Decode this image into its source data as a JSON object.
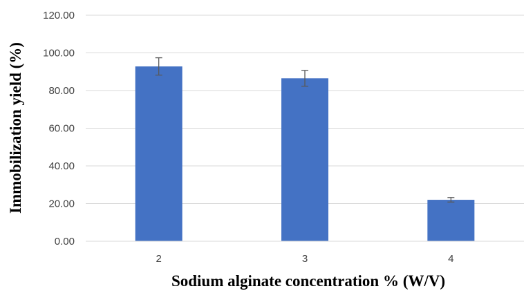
{
  "chart_data": {
    "type": "bar",
    "title": "",
    "xlabel": "Sodium alginate concentration % (W/V)",
    "ylabel": "Immobilization yield (%)",
    "categories": [
      "2",
      "3",
      "4"
    ],
    "series": [
      {
        "values": [
          92.8,
          86.5,
          22.0
        ],
        "errors": [
          4.6,
          4.2,
          1.2
        ],
        "color": "#4472C4"
      }
    ],
    "ylim": [
      0,
      120
    ],
    "yticks": [
      "0.00",
      "20.00",
      "40.00",
      "60.00",
      "80.00",
      "100.00",
      "120.00"
    ],
    "grid": true,
    "legend": "none"
  }
}
